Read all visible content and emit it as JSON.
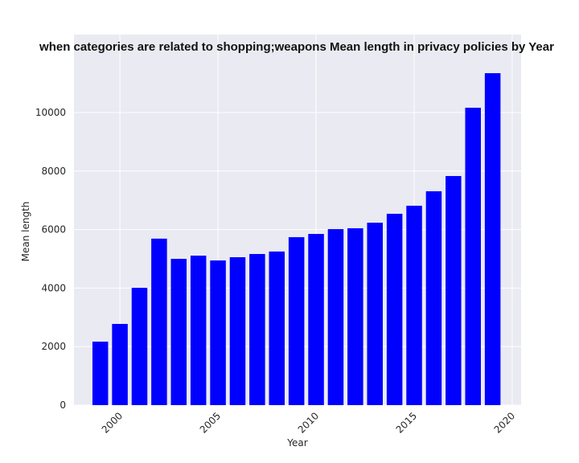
{
  "chart_data": {
    "type": "bar",
    "title": "when categories are related to shopping;weapons Mean length in privacy policies by Year",
    "x_label": "Year",
    "y_label": "Mean length",
    "x": [
      1999,
      2000,
      2001,
      2002,
      2003,
      2004,
      2005,
      2006,
      2007,
      2008,
      2009,
      2010,
      2011,
      2012,
      2013,
      2014,
      2015,
      2016,
      2017,
      2018,
      2019
    ],
    "values": [
      2170,
      2775,
      4010,
      5690,
      5000,
      5110,
      4945,
      5055,
      5165,
      5250,
      5740,
      5850,
      6015,
      6045,
      6235,
      6540,
      6815,
      7310,
      7830,
      10165,
      11345
    ],
    "color": "#0000ff",
    "xlim": [
      1997.66,
      2020.45
    ],
    "xticks": [
      2000,
      2005,
      2010,
      2015,
      2020
    ],
    "ylim": [
      0,
      12665
    ],
    "yticks": [
      0,
      2000,
      4000,
      6000,
      8000,
      10000
    ],
    "grid": true
  }
}
